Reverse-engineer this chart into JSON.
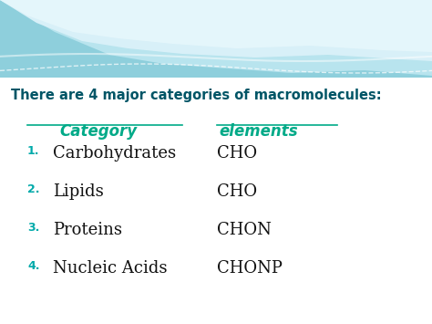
{
  "title": "There are 4 major categories of macromolecules:",
  "title_color": "#005566",
  "title_fontsize": 10.5,
  "header_category": "Category",
  "header_elements": "elements",
  "header_color": "#00AA88",
  "header_fontsize": 12,
  "number_color": "#00AAAA",
  "number_fontsize": 9,
  "category_fontsize": 13,
  "elements_fontsize": 13,
  "category_color": "#111111",
  "elements_color": "#111111",
  "rows": [
    {
      "num": "1.",
      "category": "Carbohydrates",
      "elements": "CHO"
    },
    {
      "num": "2.",
      "category": "Lipids",
      "elements": "CHO"
    },
    {
      "num": "3.",
      "category": "Proteins",
      "elements": "CHON"
    },
    {
      "num": "4.",
      "category": "Nucleic Acids",
      "elements": "CHONP"
    }
  ],
  "bg_body_color": "#FFFFFF",
  "underline_color": "#00AA88",
  "wave_color1": "#8ECFDC",
  "wave_color2": "#B8E4EE",
  "wave_color3": "#D8F0F8",
  "wave_white": "#FFFFFF"
}
